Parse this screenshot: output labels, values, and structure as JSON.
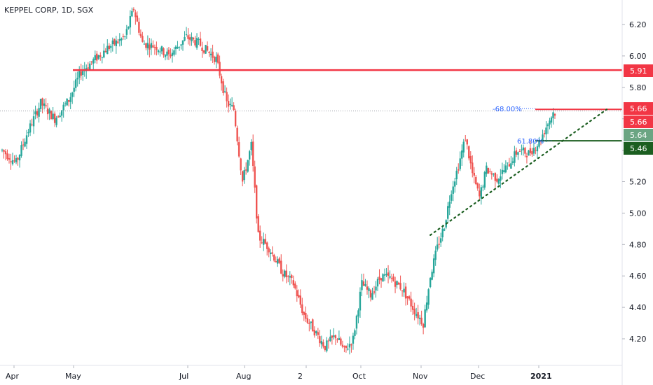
{
  "chart_title": "KEPPEL CORP, 1D, SGX",
  "colors": {
    "up": "#26a69a",
    "down": "#ef5350",
    "resistance": "#f23645",
    "support": "#1b5e20",
    "trendline": "#1b5e20",
    "fib": "#2962ff",
    "badge_green_light": "#6ba583"
  },
  "chart_data": {
    "type": "candlestick",
    "title": "KEPPEL CORP, 1D, SGX",
    "ylim": [
      4.04,
      6.34
    ],
    "x_tick_labels": [
      "Apr",
      "May",
      "Jul",
      "Aug",
      "2",
      "Oct",
      "Nov",
      "Dec",
      "2021"
    ],
    "y_tick_labels": [
      "6.20",
      "6.00",
      "5.80",
      "5.60",
      "5.40",
      "5.20",
      "5.00",
      "4.80",
      "4.60",
      "4.40",
      "4.20"
    ],
    "y_ticks": [
      6.2,
      6.0,
      5.8,
      5.6,
      5.4,
      5.2,
      5.0,
      4.8,
      4.6,
      4.4,
      4.2
    ],
    "price_path_anchors": [
      [
        0,
        5.4
      ],
      [
        8,
        5.32
      ],
      [
        14,
        5.5
      ],
      [
        22,
        5.7
      ],
      [
        30,
        5.6
      ],
      [
        38,
        5.72
      ],
      [
        45,
        5.9
      ],
      [
        50,
        5.95
      ],
      [
        60,
        6.05
      ],
      [
        70,
        6.12
      ],
      [
        75,
        6.3
      ],
      [
        80,
        6.08
      ],
      [
        88,
        6.06
      ],
      [
        95,
        6.0
      ],
      [
        105,
        6.12
      ],
      [
        112,
        6.08
      ],
      [
        122,
        5.98
      ],
      [
        128,
        5.7
      ],
      [
        132,
        5.66
      ],
      [
        137,
        5.2
      ],
      [
        142,
        5.43
      ],
      [
        146,
        4.85
      ],
      [
        152,
        4.78
      ],
      [
        160,
        4.62
      ],
      [
        166,
        4.55
      ],
      [
        172,
        4.35
      ],
      [
        178,
        4.25
      ],
      [
        184,
        4.15
      ],
      [
        190,
        4.22
      ],
      [
        195,
        4.12
      ],
      [
        200,
        4.2
      ],
      [
        205,
        4.55
      ],
      [
        210,
        4.48
      ],
      [
        216,
        4.6
      ],
      [
        222,
        4.58
      ],
      [
        228,
        4.52
      ],
      [
        235,
        4.38
      ],
      [
        240,
        4.3
      ],
      [
        244,
        4.6
      ],
      [
        248,
        4.78
      ],
      [
        252,
        4.92
      ],
      [
        256,
        5.15
      ],
      [
        260,
        5.3
      ],
      [
        264,
        5.48
      ],
      [
        268,
        5.25
      ],
      [
        272,
        5.1
      ],
      [
        276,
        5.28
      ],
      [
        282,
        5.22
      ],
      [
        288,
        5.3
      ],
      [
        294,
        5.4
      ],
      [
        300,
        5.38
      ],
      [
        306,
        5.45
      ],
      [
        310,
        5.55
      ],
      [
        314,
        5.64
      ]
    ],
    "horizontal_levels": [
      {
        "price": 5.91,
        "label": "5.91",
        "color": "resistance"
      },
      {
        "price": 5.66,
        "label": "5.66",
        "color": "resistance"
      },
      {
        "price": 5.46,
        "label": "5.46",
        "color": "support"
      }
    ],
    "price_badges": [
      "5.66",
      "5.64"
    ],
    "fib_labels": [
      "-68.00%",
      "61.80%"
    ],
    "trendline": {
      "from": [
        244,
        4.86
      ],
      "to": [
        346,
        5.66
      ]
    }
  },
  "y_axis": {
    "badges": {
      "r591": "5.91",
      "r566": "5.66",
      "last566": "5.66",
      "g564": "5.64",
      "s546": "5.46"
    }
  },
  "fib": {
    "neg68": "-68.00%",
    "p618": "61.80%"
  }
}
